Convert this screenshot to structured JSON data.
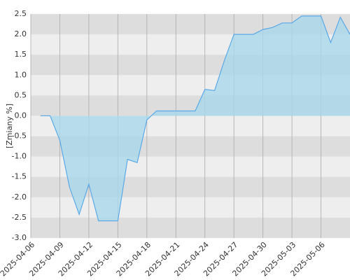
{
  "chart_data": {
    "type": "area",
    "y_label": "[Zmiany %]",
    "x": [
      "2025-04-07",
      "2025-04-08",
      "2025-04-09",
      "2025-04-10",
      "2025-04-11",
      "2025-04-12",
      "2025-04-13",
      "2025-04-14",
      "2025-04-15",
      "2025-04-16",
      "2025-04-17",
      "2025-04-18",
      "2025-04-19",
      "2025-04-20",
      "2025-04-21",
      "2025-04-22",
      "2025-04-23",
      "2025-04-24",
      "2025-04-25",
      "2025-04-26",
      "2025-04-27",
      "2025-04-28",
      "2025-04-29",
      "2025-04-30",
      "2025-05-01",
      "2025-05-02",
      "2025-05-03",
      "2025-05-04",
      "2025-05-05",
      "2025-05-06",
      "2025-05-07",
      "2025-05-08",
      "2025-05-09"
    ],
    "series": [
      {
        "color": "#5aa9e6",
        "fill": "#a9d8ec",
        "values": [
          0,
          0,
          -0.6,
          -1.75,
          -2.42,
          -1.68,
          -2.58,
          -2.58,
          -2.58,
          -1.07,
          -1.15,
          -0.1,
          0.12,
          0.12,
          0.12,
          0.12,
          0.12,
          0.65,
          0.62,
          1.35,
          2.0,
          2.0,
          2.0,
          2.12,
          2.17,
          2.28,
          2.28,
          2.45,
          2.45,
          2.45,
          1.8,
          2.42,
          2.0
        ]
      }
    ],
    "xlim": [
      "2025-04-06",
      "2025-05-09"
    ],
    "xticks": [
      "2025-04-06",
      "2025-04-09",
      "2025-04-12",
      "2025-04-15",
      "2025-04-18",
      "2025-04-21",
      "2025-04-24",
      "2025-04-27",
      "2025-04-30",
      "2025-05-03",
      "2025-05-06"
    ],
    "ylim": [
      -3,
      2.5
    ],
    "yticks": [
      {
        "value": -3,
        "label": "-3.0"
      },
      {
        "value": -2.5,
        "label": "-2.5"
      },
      {
        "value": -2,
        "label": "-2.0"
      },
      {
        "value": -1.5,
        "label": "-1.5"
      },
      {
        "value": -1,
        "label": "-1.0"
      },
      {
        "value": -0.5,
        "label": "-0.5"
      },
      {
        "value": 0,
        "label": "0.0"
      },
      {
        "value": 0.5,
        "label": "0.5"
      },
      {
        "value": 1,
        "label": "1.0"
      },
      {
        "value": 1.5,
        "label": "1.5"
      },
      {
        "value": 2,
        "label": "2.0"
      },
      {
        "value": 2.5,
        "label": "2.5"
      }
    ],
    "grid": true
  }
}
